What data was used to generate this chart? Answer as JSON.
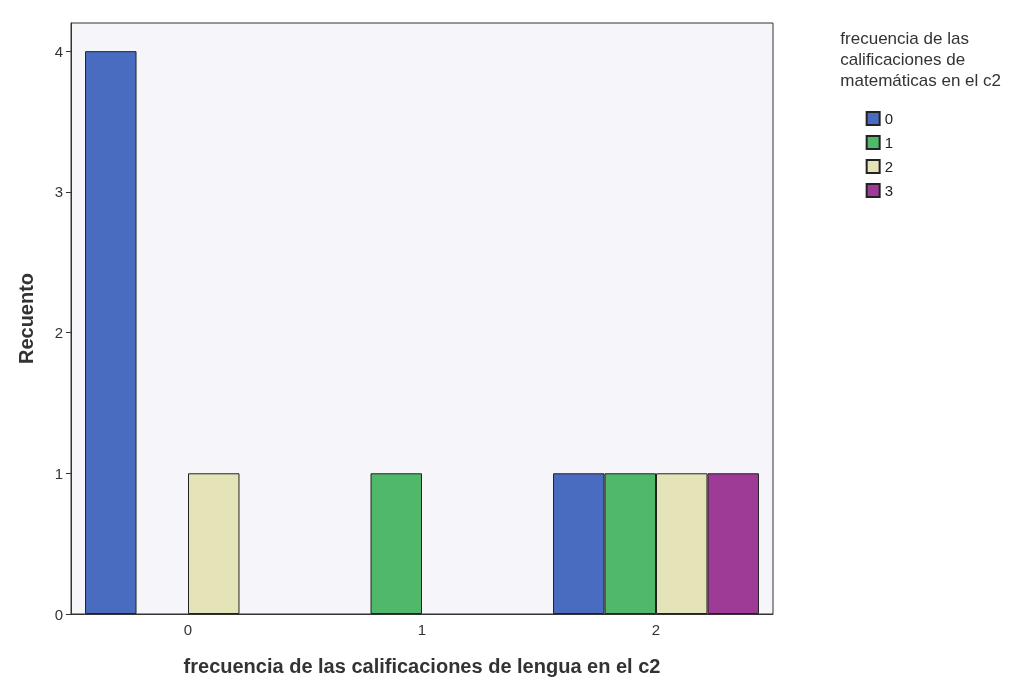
{
  "chart_data": {
    "type": "bar",
    "xlabel": "frecuencia de las calificaciones de lengua en el c2",
    "ylabel": "Recuento",
    "legend_title": "frecuencia de las\ncalificaciones de\nmatemáticas en el c2",
    "categories": [
      "0",
      "1",
      "2"
    ],
    "series": [
      {
        "name": "0",
        "color": "#4a6cc0",
        "values": [
          4,
          null,
          1
        ]
      },
      {
        "name": "1",
        "color": "#4fb86a",
        "values": [
          null,
          1,
          1
        ]
      },
      {
        "name": "2",
        "color": "#e5e3b8",
        "values": [
          1,
          null,
          1
        ]
      },
      {
        "name": "3",
        "color": "#9e3b97",
        "values": [
          null,
          null,
          1
        ]
      }
    ],
    "ylim": [
      0,
      4.2
    ],
    "yticks": [
      0,
      1,
      2,
      3,
      4
    ],
    "grid": false,
    "legend": "top right"
  }
}
